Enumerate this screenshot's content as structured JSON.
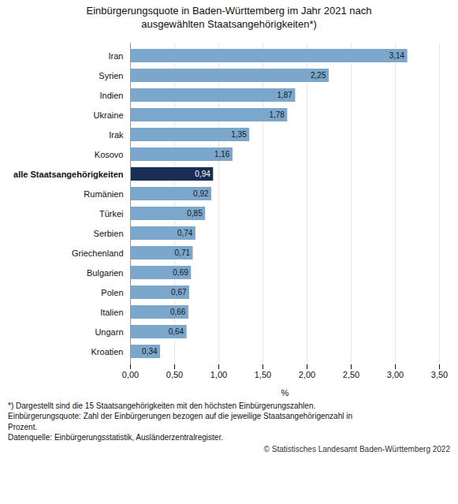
{
  "chart_data": {
    "type": "bar",
    "orientation": "horizontal",
    "title": "Einbürgerungsquote in Baden-Württemberg im Jahr 2021 nach\nausgewählten Staatsangehörigkeiten*)",
    "categories": [
      "Iran",
      "Syrien",
      "Indien",
      "Ukraine",
      "Irak",
      "Kosovo",
      "alle Staatsangehörigkeiten",
      "Rumänien",
      "Türkei",
      "Serbien",
      "Griechenland",
      "Bulgarien",
      "Polen",
      "Italien",
      "Ungarn",
      "Kroatien"
    ],
    "values": [
      3.14,
      2.25,
      1.87,
      1.78,
      1.35,
      1.16,
      0.94,
      0.92,
      0.85,
      0.74,
      0.71,
      0.69,
      0.67,
      0.66,
      0.64,
      0.34
    ],
    "value_labels": [
      "3,14",
      "2,25",
      "1,87",
      "1,78",
      "1,35",
      "1,16",
      "0,94",
      "0,92",
      "0,85",
      "0,74",
      "0,71",
      "0,69",
      "0,67",
      "0,66",
      "0,64",
      "0,34"
    ],
    "data_labels": true,
    "colors": [
      "#7ba7cc",
      "#7ba7cc",
      "#7ba7cc",
      "#7ba7cc",
      "#7ba7cc",
      "#7ba7cc",
      "#1a2e55",
      "#7ba7cc",
      "#7ba7cc",
      "#7ba7cc",
      "#7ba7cc",
      "#7ba7cc",
      "#7ba7cc",
      "#7ba7cc",
      "#7ba7cc",
      "#7ba7cc"
    ],
    "xlabel": "%",
    "xlim": [
      0,
      3.5
    ],
    "xticks": [
      {
        "value": 0.0,
        "label": "0,00"
      },
      {
        "value": 0.5,
        "label": "0,50"
      },
      {
        "value": 1.0,
        "label": "1,00"
      },
      {
        "value": 1.5,
        "label": "1,50"
      },
      {
        "value": 2.0,
        "label": "2,00"
      },
      {
        "value": 2.5,
        "label": "2,50"
      },
      {
        "value": 3.0,
        "label": "3,00"
      },
      {
        "value": 3.5,
        "label": "3,50"
      }
    ],
    "grid": true,
    "footnote": "*) Dargestellt sind die 15 Staatsangehörigkeiten mit den höchsten Einbürgerungszahlen.\nEinbürgerungsquote: Zahl der Einbürgerungen bezogen auf die jeweilige Staatsangehörigenzahl in\nProzent.\nDatenquelle: Einbürgerungsstatistik, Ausländerzentralregister.",
    "copyright": "© Statistisches Landesamt Baden-Württemberg 2022"
  }
}
